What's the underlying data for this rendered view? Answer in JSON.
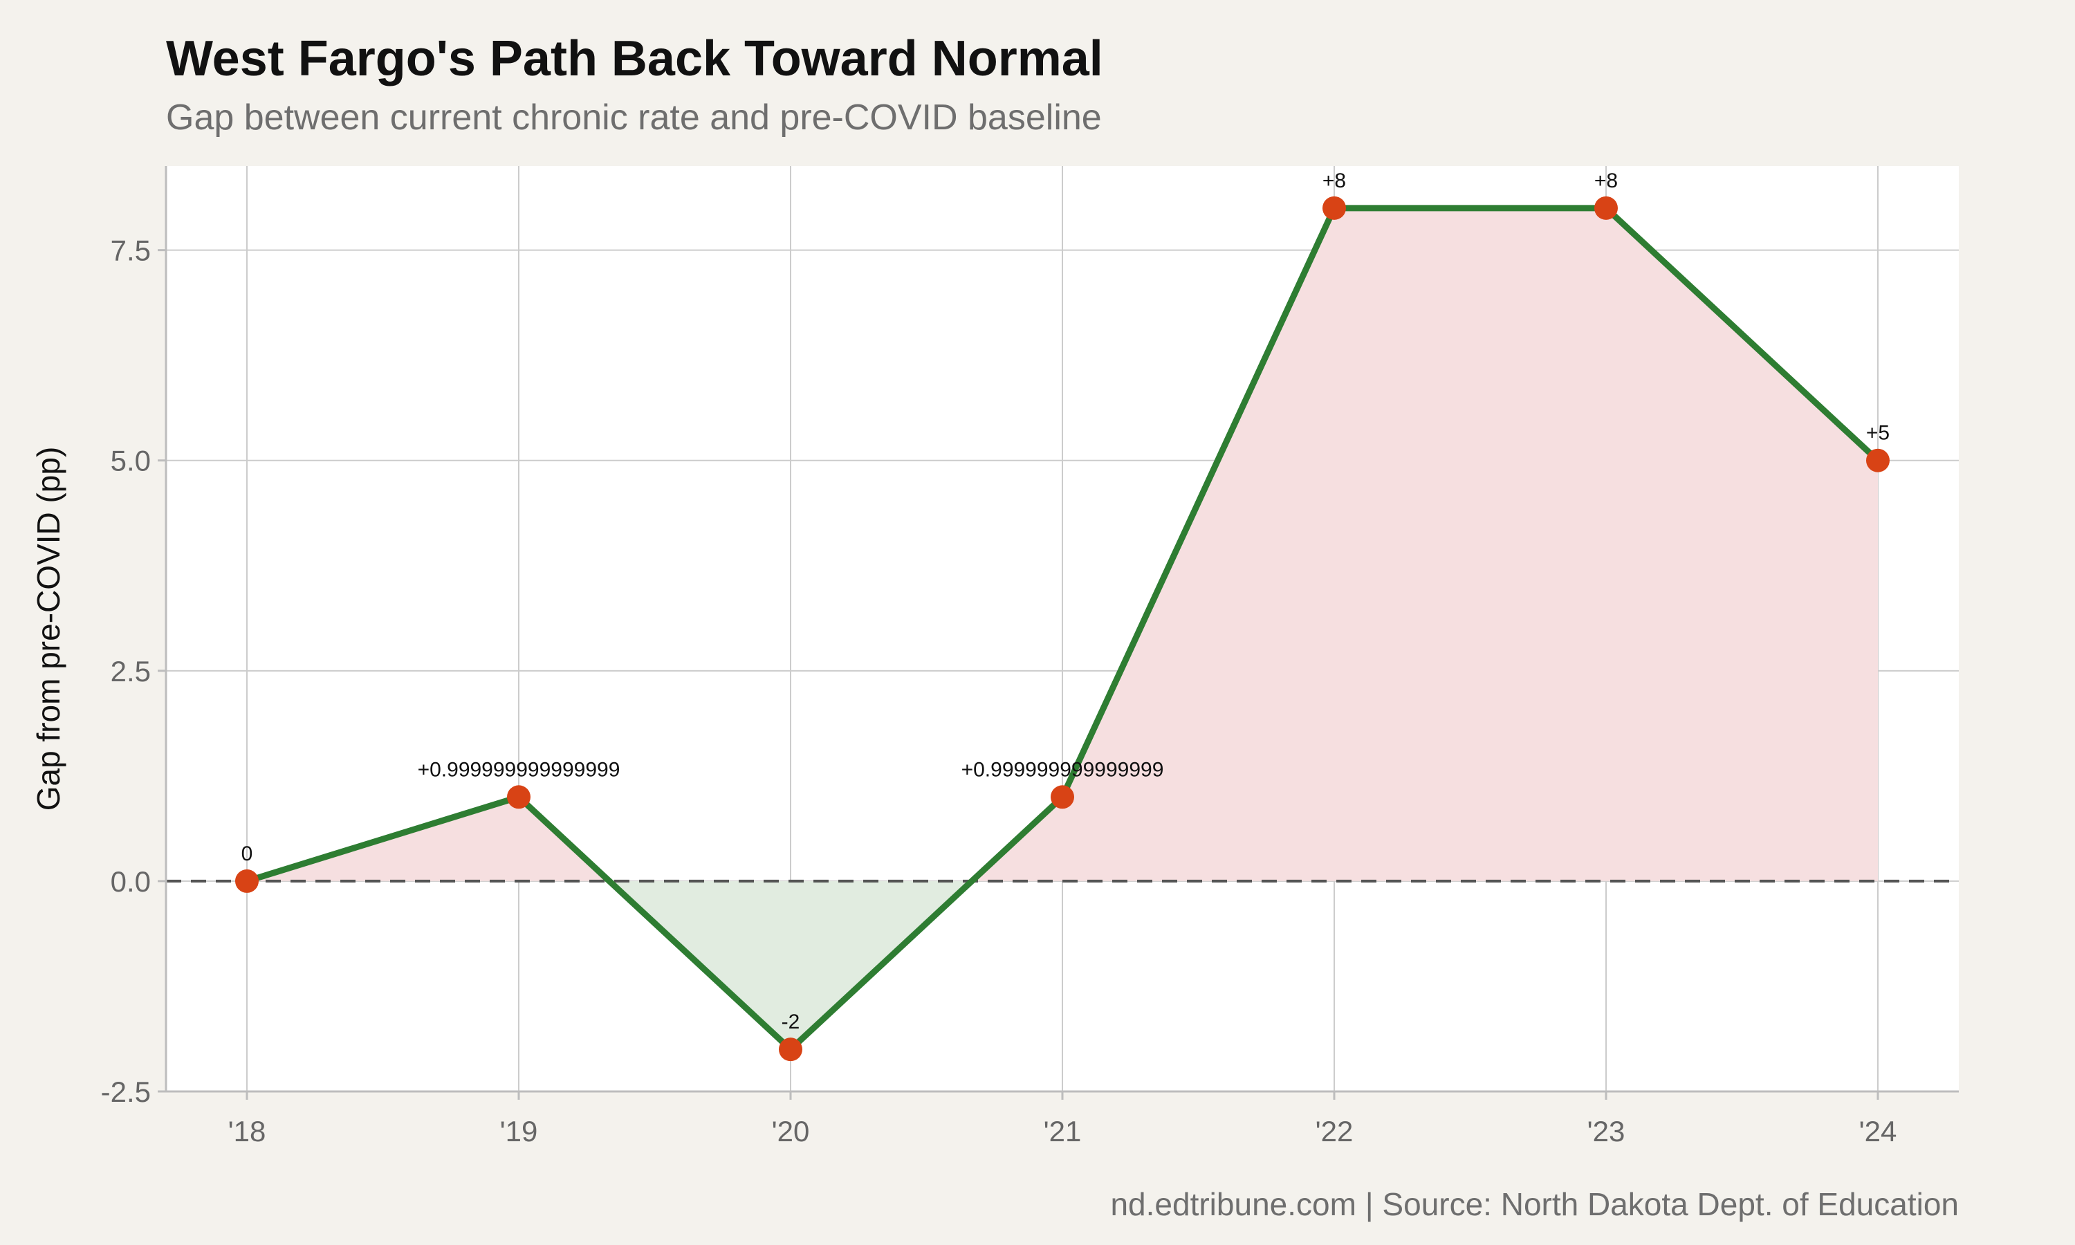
{
  "title": "West Fargo's Path Back Toward Normal",
  "subtitle": "Gap between current chronic rate and pre-COVID baseline",
  "caption": "nd.edtribune.com | Source: North Dakota Dept. of Education",
  "colors": {
    "background": "#f4f2ed",
    "panel": "#ffffff",
    "line": "#2e7d32",
    "point": "#d84315",
    "positive_fill": "#f6dfe0",
    "negative_fill": "#e1ece0",
    "zero_line": "#555555",
    "grid": "#cccccc"
  },
  "chart_data": {
    "type": "line",
    "title": "West Fargo's Path Back Toward Normal",
    "subtitle": "Gap between current chronic rate and pre-COVID baseline",
    "xlabel": "",
    "ylabel": "Gap from pre-COVID (pp)",
    "categories": [
      "'18",
      "'19",
      "'20",
      "'21",
      "'22",
      "'23",
      "'24"
    ],
    "values": [
      0,
      1,
      -2,
      1,
      8,
      8,
      5
    ],
    "data_labels": [
      "0",
      "+0.999999999999999",
      "-2",
      "+0.999999999999999",
      "+8",
      "+8",
      "+5"
    ],
    "ylim": [
      -2.5,
      8.5
    ],
    "yticks": [
      -2.5,
      0,
      2.5,
      5,
      7.5
    ],
    "ytick_labels": [
      "-2.5",
      "0.0",
      "2.5",
      "5.0",
      "7.5"
    ],
    "reference_line": 0,
    "grid": true,
    "legend": "none"
  }
}
